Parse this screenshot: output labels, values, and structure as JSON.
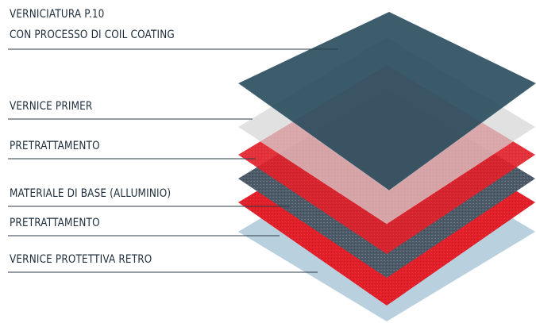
{
  "layers": [
    {
      "label_lines": [
        "VERNICIATURA P.10",
        "CON PROCESSO DI COIL COATING"
      ]
    },
    {
      "label_lines": [
        "VERNICE PRIMER"
      ]
    },
    {
      "label_lines": [
        "PRETRATTAMENTO"
      ]
    },
    {
      "label_lines": [
        "MATERIALE DI BASE (ALLUMINIO)"
      ]
    },
    {
      "label_lines": [
        "PRETRATTAMENTO"
      ]
    },
    {
      "label_lines": [
        "VERNICE PROTETTIVA RETRO"
      ]
    }
  ]
}
